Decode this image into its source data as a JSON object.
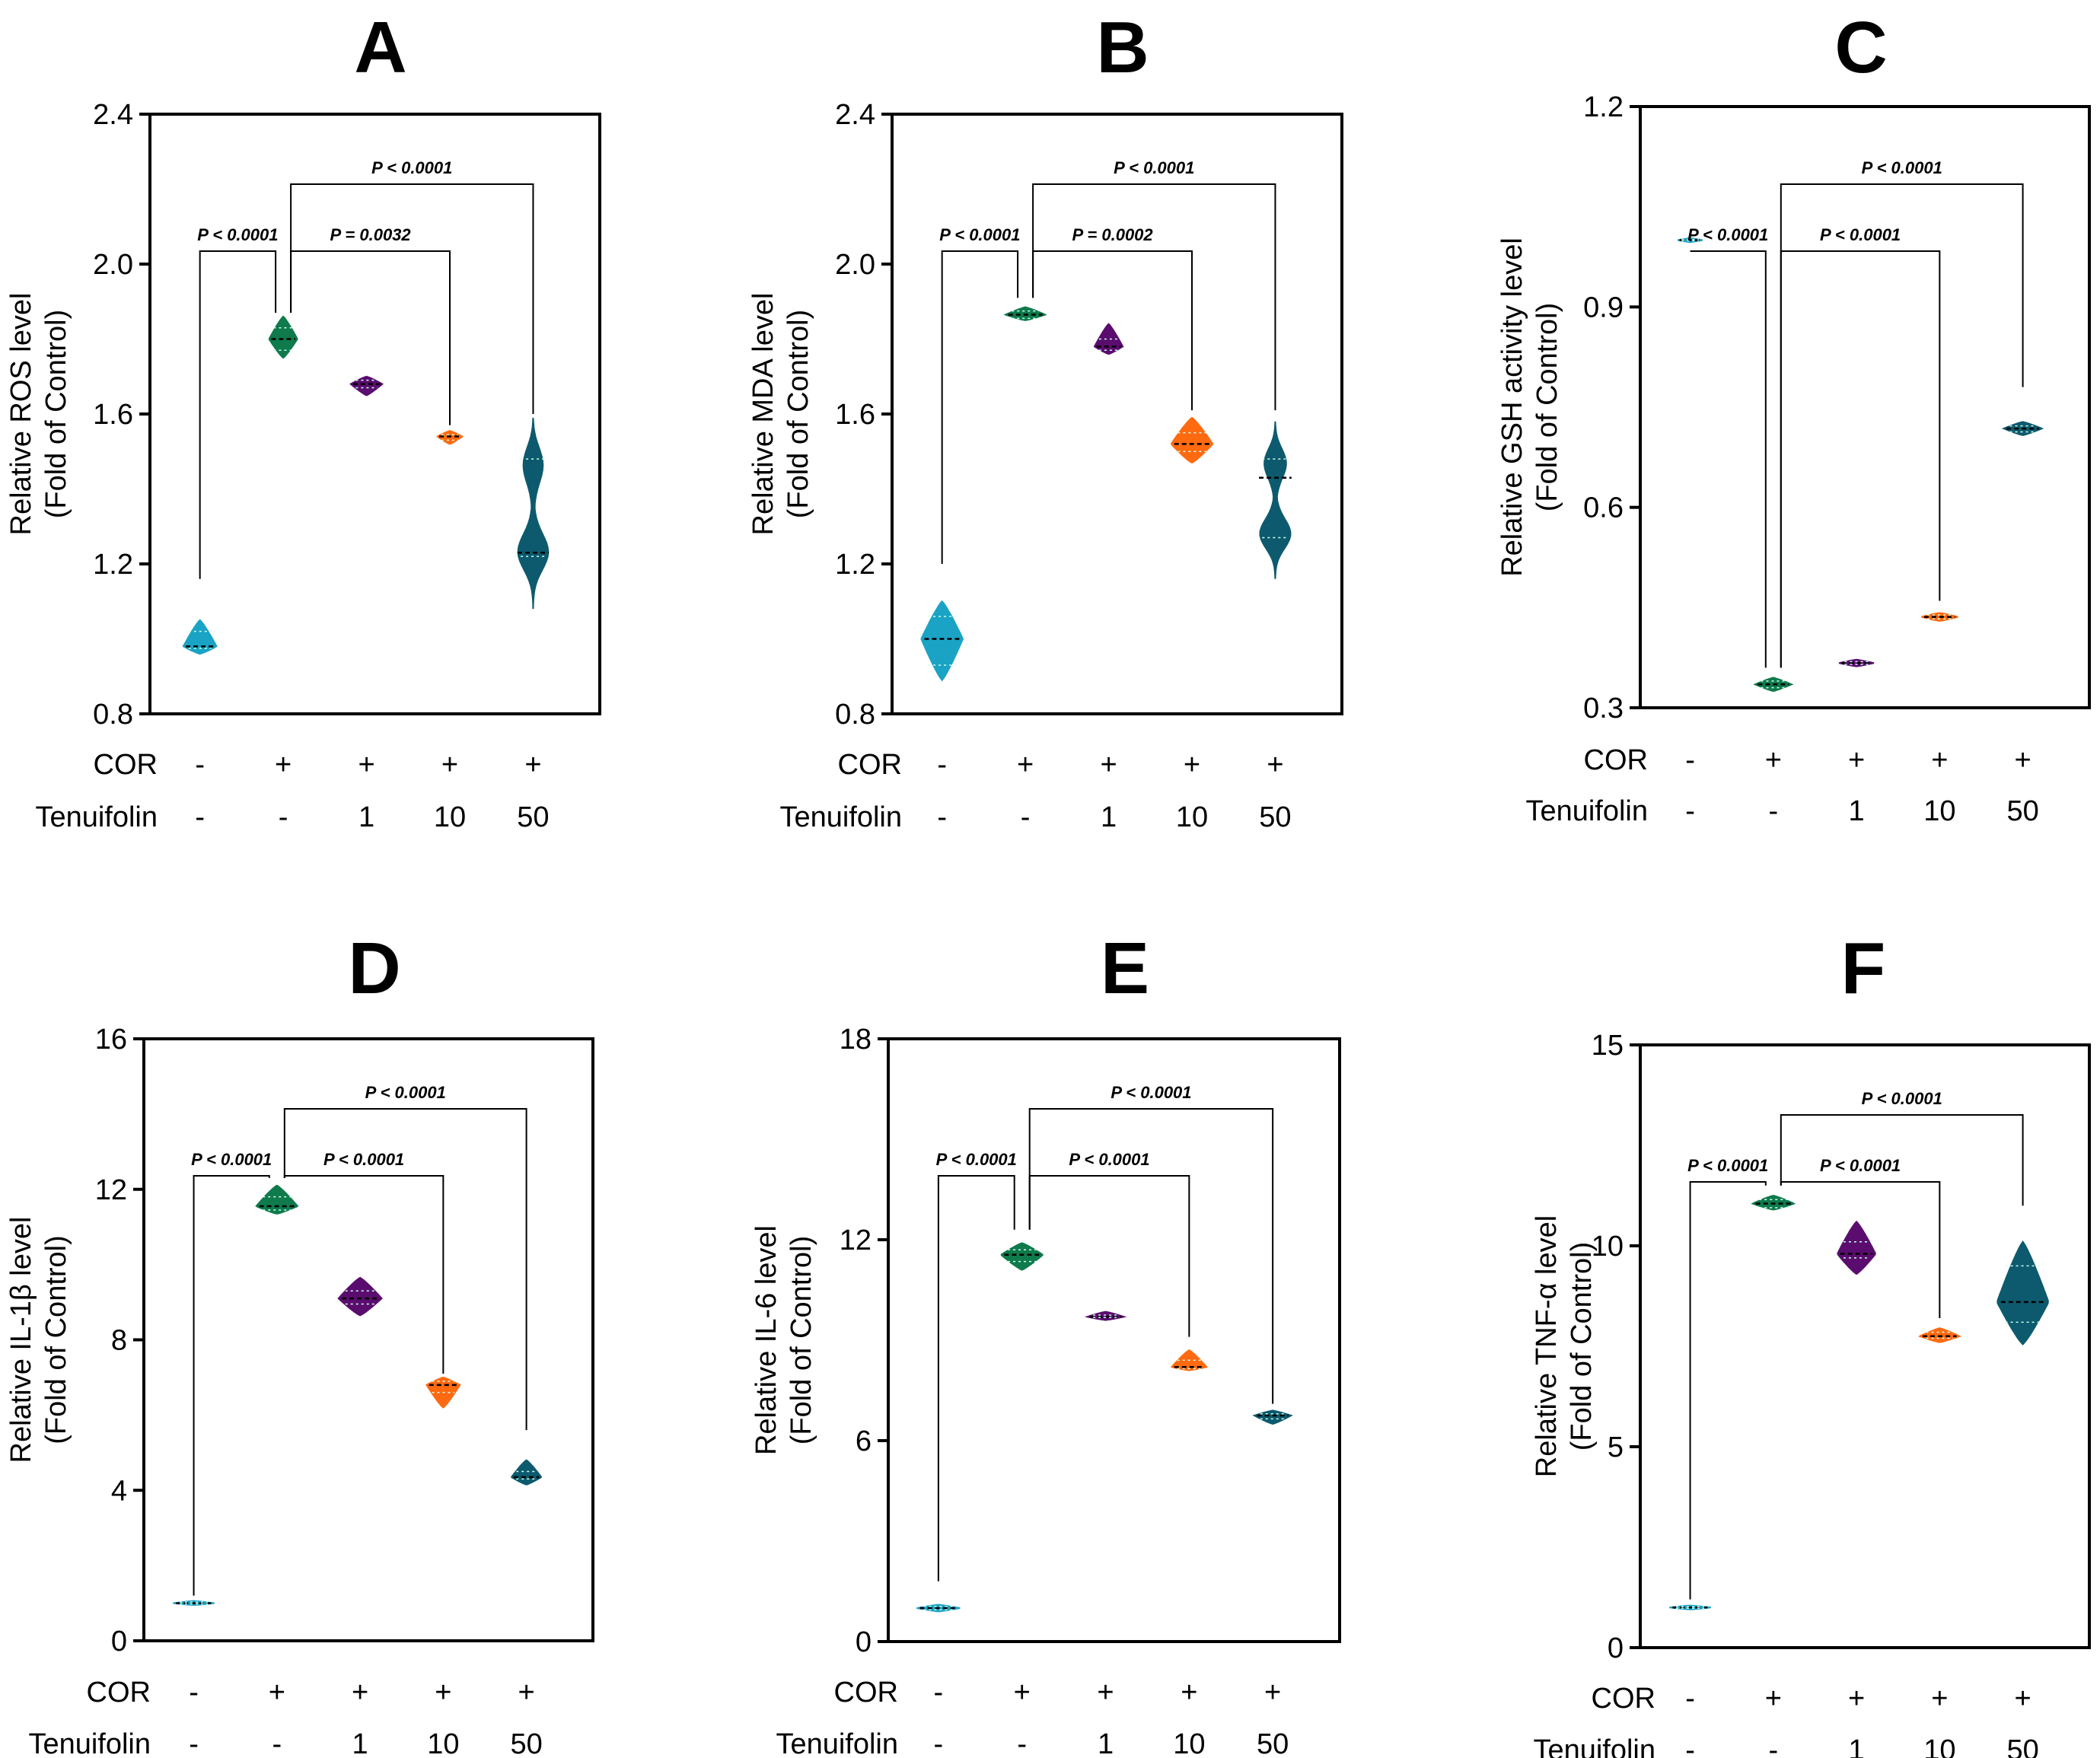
{
  "colors": {
    "control": "#1aa3c4",
    "cor": "#0f7a4c",
    "ten1": "#5a0d6e",
    "ten10": "#ff6a10",
    "ten50": "#0d5a6e",
    "axis": "#000000"
  },
  "row_labels": {
    "cor": "COR",
    "tenuifolin": "Tenuifolin"
  },
  "groups": [
    {
      "cor": "-",
      "ten": "-"
    },
    {
      "cor": "+",
      "ten": "-"
    },
    {
      "cor": "+",
      "ten": "1"
    },
    {
      "cor": "+",
      "ten": "10"
    },
    {
      "cor": "+",
      "ten": "50"
    }
  ],
  "chart_data": [
    {
      "type": "violin",
      "panel": "A",
      "ylabel": "Relative ROS level",
      "ylabel2": "(Fold of Control)",
      "ylim": [
        0.8,
        2.4
      ],
      "ticks": [
        "0.8",
        "1.2",
        "1.6",
        "2.0",
        "2.4"
      ],
      "violins": [
        {
          "min": 0.96,
          "max": 1.05,
          "median": 0.98,
          "q1": 0.975,
          "q3": 1.02,
          "width": 0.4
        },
        {
          "min": 1.75,
          "max": 1.86,
          "median": 1.8,
          "q1": 1.77,
          "q3": 1.83,
          "width": 0.34
        },
        {
          "min": 1.65,
          "max": 1.7,
          "median": 1.68,
          "q1": 1.67,
          "q3": 1.69,
          "width": 0.38
        },
        {
          "min": 1.52,
          "max": 1.555,
          "median": 1.54,
          "q1": 1.53,
          "q3": 1.545,
          "width": 0.3
        },
        {
          "min": 1.08,
          "max": 1.59,
          "median": 1.23,
          "q1": 1.22,
          "q3": 1.48,
          "width": 0.44,
          "bimodal": true
        }
      ],
      "comparisons": [
        {
          "from": 0,
          "to": 1,
          "label": "P < 0.0001",
          "level": 1,
          "tip1": 1.16,
          "tip2": 1.87
        },
        {
          "from": 1,
          "to": 3,
          "label": "P = 0.0032",
          "level": 1,
          "tip1": 1.87,
          "tip2": 1.57
        },
        {
          "from": 1,
          "to": 4,
          "label": "P < 0.0001",
          "level": 2,
          "tip1": 1.87,
          "tip2": 1.6
        }
      ]
    },
    {
      "type": "violin",
      "panel": "B",
      "ylabel": "Relative MDA level",
      "ylabel2": "(Fold of Control)",
      "ylim": [
        0.8,
        2.4
      ],
      "ticks": [
        "0.8",
        "1.2",
        "1.6",
        "2.0",
        "2.4"
      ],
      "violins": [
        {
          "min": 0.89,
          "max": 1.1,
          "median": 1.0,
          "q1": 0.93,
          "q3": 1.06,
          "width": 0.5
        },
        {
          "min": 1.85,
          "max": 1.885,
          "median": 1.865,
          "q1": 1.855,
          "q3": 1.875,
          "width": 0.48
        },
        {
          "min": 1.76,
          "max": 1.84,
          "median": 1.78,
          "q1": 1.77,
          "q3": 1.8,
          "width": 0.34
        },
        {
          "min": 1.47,
          "max": 1.59,
          "median": 1.52,
          "q1": 1.5,
          "q3": 1.55,
          "width": 0.5
        },
        {
          "min": 1.16,
          "max": 1.58,
          "median": 1.43,
          "q1": 1.27,
          "q3": 1.48,
          "width": 0.46,
          "bimodal": true
        }
      ],
      "comparisons": [
        {
          "from": 0,
          "to": 1,
          "label": "P < 0.0001",
          "level": 1,
          "tip1": 1.2,
          "tip2": 1.91
        },
        {
          "from": 1,
          "to": 3,
          "label": "P = 0.0002",
          "level": 1,
          "tip1": 1.91,
          "tip2": 1.61
        },
        {
          "from": 1,
          "to": 4,
          "label": "P < 0.0001",
          "level": 2,
          "tip1": 1.91,
          "tip2": 1.61
        }
      ]
    },
    {
      "type": "violin",
      "panel": "C",
      "ylabel": "Relative GSH activity level",
      "ylabel2": "(Fold of Control)",
      "ylim": [
        0.3,
        1.2
      ],
      "ticks": [
        "0.3",
        "0.6",
        "0.9",
        "1.2"
      ],
      "violins": [
        {
          "min": 0.997,
          "max": 1.003,
          "median": 1.0,
          "q1": 0.999,
          "q3": 1.001,
          "width": 0.3
        },
        {
          "min": 0.325,
          "max": 0.345,
          "median": 0.335,
          "q1": 0.33,
          "q3": 0.34,
          "width": 0.44
        },
        {
          "min": 0.362,
          "max": 0.372,
          "median": 0.367,
          "q1": 0.365,
          "q3": 0.369,
          "width": 0.42
        },
        {
          "min": 0.43,
          "max": 0.442,
          "median": 0.436,
          "q1": 0.433,
          "q3": 0.439,
          "width": 0.44
        },
        {
          "min": 0.708,
          "max": 0.728,
          "median": 0.718,
          "q1": 0.713,
          "q3": 0.722,
          "width": 0.46
        }
      ],
      "comparisons": [
        {
          "from": 0,
          "to": 1,
          "label": "P < 0.0001",
          "level": 1,
          "tip1": 1.01,
          "tip2": 0.36
        },
        {
          "from": 1,
          "to": 3,
          "label": "P < 0.0001",
          "level": 1,
          "tip1": 0.36,
          "tip2": 0.46
        },
        {
          "from": 1,
          "to": 4,
          "label": "P < 0.0001",
          "level": 2,
          "tip1": 0.36,
          "tip2": 0.78
        }
      ]
    },
    {
      "type": "violin",
      "panel": "D",
      "ylabel": "Relative IL-1β level",
      "ylabel2": "(Fold of Control)",
      "ylim": [
        0,
        16
      ],
      "ticks": [
        "0",
        "4",
        "8",
        "12",
        "16"
      ],
      "violins": [
        {
          "min": 0.95,
          "max": 1.06,
          "median": 1.0,
          "q1": 0.98,
          "q3": 1.03,
          "width": 0.5
        },
        {
          "min": 11.35,
          "max": 12.1,
          "median": 11.55,
          "q1": 11.45,
          "q3": 11.8,
          "width": 0.5
        },
        {
          "min": 8.65,
          "max": 9.65,
          "median": 9.1,
          "q1": 8.95,
          "q3": 9.3,
          "width": 0.52
        },
        {
          "min": 6.2,
          "max": 7.0,
          "median": 6.8,
          "q1": 6.6,
          "q3": 6.9,
          "width": 0.4
        },
        {
          "min": 4.15,
          "max": 4.8,
          "median": 4.35,
          "q1": 4.3,
          "q3": 4.5,
          "width": 0.36
        }
      ],
      "comparisons": [
        {
          "from": 0,
          "to": 1,
          "label": "P < 0.0001",
          "level": 1,
          "tip1": 1.2,
          "tip2": 12.3
        },
        {
          "from": 1,
          "to": 3,
          "label": "P < 0.0001",
          "level": 1,
          "tip1": 12.3,
          "tip2": 7.1
        },
        {
          "from": 1,
          "to": 4,
          "label": "P < 0.0001",
          "level": 2,
          "tip1": 12.3,
          "tip2": 5.6
        }
      ]
    },
    {
      "type": "violin",
      "panel": "E",
      "ylabel": "Relative IL-6 level",
      "ylabel2": "(Fold of Control)",
      "ylim": [
        0,
        18
      ],
      "ticks": [
        "0",
        "6",
        "12",
        "18"
      ],
      "violins": [
        {
          "min": 0.9,
          "max": 1.1,
          "median": 1.0,
          "q1": 0.95,
          "q3": 1.05,
          "width": 0.52
        },
        {
          "min": 11.1,
          "max": 11.9,
          "median": 11.55,
          "q1": 11.35,
          "q3": 11.7,
          "width": 0.5
        },
        {
          "min": 9.6,
          "max": 9.85,
          "median": 9.7,
          "q1": 9.68,
          "q3": 9.75,
          "width": 0.44
        },
        {
          "min": 8.1,
          "max": 8.7,
          "median": 8.2,
          "q1": 8.15,
          "q3": 8.4,
          "width": 0.42
        },
        {
          "min": 6.5,
          "max": 6.9,
          "median": 6.75,
          "q1": 6.65,
          "q3": 6.8,
          "width": 0.44
        }
      ],
      "comparisons": [
        {
          "from": 0,
          "to": 1,
          "label": "P < 0.0001",
          "level": 1,
          "tip1": 1.8,
          "tip2": 12.3
        },
        {
          "from": 1,
          "to": 3,
          "label": "P < 0.0001",
          "level": 1,
          "tip1": 12.3,
          "tip2": 9.1
        },
        {
          "from": 1,
          "to": 4,
          "label": "P < 0.0001",
          "level": 2,
          "tip1": 12.3,
          "tip2": 7.1
        }
      ]
    },
    {
      "type": "violin",
      "panel": "F",
      "ylabel": "Relative TNF-α level",
      "ylabel2": "(Fold of Control)",
      "ylim": [
        0,
        15
      ],
      "ticks": [
        "0",
        "5",
        "10",
        "15"
      ],
      "violins": [
        {
          "min": 0.95,
          "max": 1.05,
          "median": 1.0,
          "q1": 0.98,
          "q3": 1.02,
          "width": 0.5
        },
        {
          "min": 10.9,
          "max": 11.25,
          "median": 11.05,
          "q1": 10.95,
          "q3": 11.15,
          "width": 0.5
        },
        {
          "min": 9.3,
          "max": 10.6,
          "median": 9.8,
          "q1": 9.7,
          "q3": 10.1,
          "width": 0.46
        },
        {
          "min": 7.6,
          "max": 7.95,
          "median": 7.75,
          "q1": 7.7,
          "q3": 7.85,
          "width": 0.48
        },
        {
          "min": 7.55,
          "max": 10.1,
          "median": 8.6,
          "q1": 8.1,
          "q3": 9.5,
          "width": 0.62
        }
      ],
      "comparisons": [
        {
          "from": 0,
          "to": 1,
          "label": "P < 0.0001",
          "level": 1,
          "tip1": 1.2,
          "tip2": 11.5
        },
        {
          "from": 1,
          "to": 3,
          "label": "P < 0.0001",
          "level": 1,
          "tip1": 11.5,
          "tip2": 8.2
        },
        {
          "from": 1,
          "to": 4,
          "label": "P < 0.0001",
          "level": 2,
          "tip1": 11.5,
          "tip2": 11.0
        }
      ]
    }
  ]
}
